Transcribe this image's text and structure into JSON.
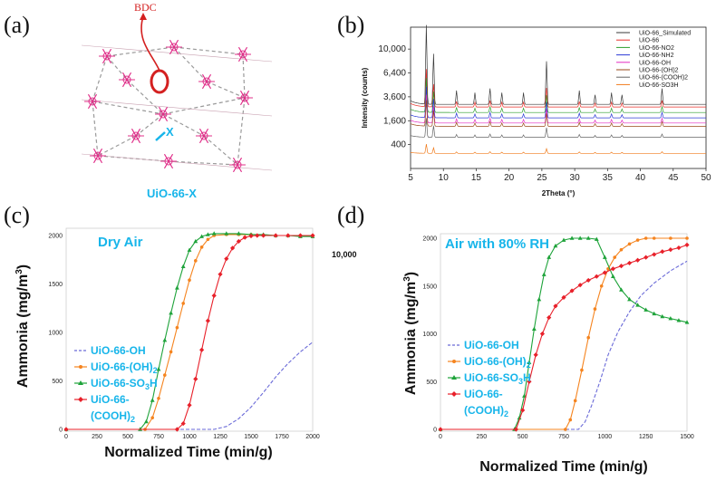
{
  "panels": {
    "a": "(a)",
    "b": "(b)",
    "c": "(c)",
    "d": "(d)"
  },
  "structure": {
    "bdc_label": "BDC",
    "x_label": "X",
    "caption": "UiO-66-X"
  },
  "stray_text": "10,000",
  "chart_data": [
    {
      "id": "b",
      "type": "line",
      "xlabel": "2Theta (°)",
      "ylabel": "Intensity (counts)",
      "xlim": [
        5,
        50
      ],
      "x_ticks": [
        5,
        10,
        15,
        20,
        25,
        30,
        35,
        40,
        45,
        50
      ],
      "y_ticks": [
        400,
        1600,
        3600,
        6400,
        10000
      ],
      "y_scale": "sqrt",
      "ylim": [
        0,
        14000
      ],
      "grid": false,
      "legend_position": "top-right",
      "peaks": [
        7.4,
        8.5,
        12.0,
        14.8,
        17.1,
        18.9,
        22.2,
        25.7,
        30.7,
        33.1,
        35.6,
        37.2,
        43.3
      ],
      "series": [
        {
          "name": "UiO-66_Simulated",
          "color": "#3a3a3a",
          "baseline": 2880,
          "peak_scale": 2.5
        },
        {
          "name": "UiO-66",
          "color": "#e8302a",
          "baseline": 2650,
          "peak_scale": 1.0
        },
        {
          "name": "UiO-66-NO2",
          "color": "#2e9e2e",
          "baseline": 2200,
          "peak_scale": 1.0
        },
        {
          "name": "UiO-66-NH2",
          "color": "#2b39d6",
          "baseline": 1800,
          "peak_scale": 1.0
        },
        {
          "name": "UiO-66-OH",
          "color": "#e22bc2",
          "baseline": 1450,
          "peak_scale": 1.0
        },
        {
          "name": "UiO-66-(OH)2",
          "color": "#9a4a1a",
          "baseline": 1250,
          "peak_scale": 1.0
        },
        {
          "name": "UiO-66-(COOH)2",
          "color": "#666666",
          "baseline": 680,
          "peak_scale": 1.0
        },
        {
          "name": "UiO-66-SO3H",
          "color": "#f07b1c",
          "baseline": 160,
          "peak_scale": 1.0
        }
      ]
    },
    {
      "id": "c",
      "type": "line",
      "title": "Dry Air",
      "xlabel": "Normalized Time (min/g)",
      "ylabel": "Ammonia (mg/m³)",
      "xlim": [
        0,
        2000
      ],
      "ylim": [
        0,
        2000
      ],
      "x_ticks": [
        0,
        250,
        500,
        750,
        1000,
        1250,
        1500,
        1750,
        2000
      ],
      "y_ticks": [
        0,
        500,
        1000,
        1500,
        2000
      ],
      "legend_position": "bottom-left",
      "series": [
        {
          "name": "UiO-66-OH",
          "color": "#6a6ad8",
          "style": "dashed",
          "x": [
            0,
            1200,
            1300,
            1400,
            1500,
            1600,
            1700,
            1800,
            1900,
            2000
          ],
          "y": [
            0,
            0,
            30,
            110,
            230,
            380,
            540,
            680,
            800,
            900
          ]
        },
        {
          "name": "UiO-66-(OH)2",
          "color": "#f5841f",
          "style": "marker",
          "x": [
            0,
            640,
            700,
            750,
            800,
            850,
            900,
            950,
            1000,
            1050,
            1100,
            1150,
            1200,
            1300,
            1400,
            1500,
            1600,
            1700,
            1800,
            1900,
            2000
          ],
          "y": [
            0,
            0,
            120,
            320,
            560,
            800,
            1050,
            1300,
            1540,
            1740,
            1880,
            1960,
            2000,
            2010,
            2010,
            2010,
            2005,
            2000,
            2000,
            2000,
            2000
          ]
        },
        {
          "name": "UiO-66-SO3H",
          "color": "#1ea33a",
          "style": "marker",
          "x": [
            0,
            600,
            650,
            700,
            750,
            800,
            850,
            900,
            950,
            1000,
            1050,
            1100,
            1150,
            1200,
            1300,
            1400,
            1500,
            1600,
            1700,
            1800,
            1900,
            2000
          ],
          "y": [
            0,
            0,
            80,
            300,
            620,
            920,
            1200,
            1460,
            1680,
            1850,
            1940,
            1990,
            2010,
            2020,
            2020,
            2020,
            2010,
            2010,
            2000,
            2000,
            1990,
            1990
          ]
        },
        {
          "name": "UiO-66-(COOH)2",
          "color": "#e8202a",
          "style": "marker",
          "x": [
            0,
            900,
            950,
            1000,
            1050,
            1100,
            1150,
            1200,
            1250,
            1300,
            1350,
            1400,
            1450,
            1500,
            1550,
            1600,
            1700,
            1800,
            1900,
            2000
          ],
          "y": [
            0,
            0,
            60,
            250,
            520,
            820,
            1120,
            1380,
            1600,
            1760,
            1870,
            1940,
            1980,
            1995,
            2000,
            2000,
            2000,
            2000,
            2000,
            2000
          ]
        }
      ]
    },
    {
      "id": "d",
      "type": "line",
      "title": "Air with 80% RH",
      "xlabel": "Normalized Time (min/g)",
      "ylabel": "Ammonia (mg/m³)",
      "xlim": [
        0,
        1500
      ],
      "ylim": [
        0,
        2000
      ],
      "x_ticks": [
        0,
        250,
        500,
        750,
        1000,
        1250,
        1500
      ],
      "y_ticks": [
        0,
        500,
        1000,
        1500,
        2000
      ],
      "legend_position": "bottom-left",
      "series": [
        {
          "name": "UiO-66-OH",
          "color": "#6a6ad8",
          "style": "dashed",
          "x": [
            0,
            840,
            880,
            920,
            970,
            1020,
            1080,
            1150,
            1220,
            1300,
            1400,
            1500
          ],
          "y": [
            0,
            0,
            80,
            250,
            500,
            780,
            1020,
            1230,
            1400,
            1530,
            1660,
            1760
          ]
        },
        {
          "name": "UiO-66-(OH)2",
          "color": "#f5841f",
          "style": "marker",
          "x": [
            0,
            760,
            790,
            820,
            860,
            900,
            940,
            980,
            1020,
            1060,
            1100,
            1150,
            1200,
            1250,
            1300,
            1400,
            1500
          ],
          "y": [
            0,
            0,
            100,
            300,
            620,
            960,
            1260,
            1500,
            1680,
            1800,
            1880,
            1940,
            1980,
            2000,
            2000,
            2000,
            2000
          ]
        },
        {
          "name": "UiO-66-SO3H",
          "color": "#1ea33a",
          "style": "marker",
          "x": [
            0,
            450,
            480,
            510,
            540,
            570,
            600,
            630,
            660,
            700,
            750,
            800,
            850,
            900,
            950,
            1000,
            1050,
            1100,
            1150,
            1200,
            1250,
            1300,
            1350,
            1400,
            1450,
            1500
          ],
          "y": [
            0,
            0,
            120,
            350,
            700,
            1050,
            1360,
            1620,
            1800,
            1920,
            1980,
            2000,
            2000,
            2000,
            1990,
            1800,
            1600,
            1460,
            1360,
            1300,
            1250,
            1210,
            1180,
            1160,
            1140,
            1120
          ]
        },
        {
          "name": "UiO-66-(COOH)2",
          "color": "#e8202a",
          "style": "marker",
          "x": [
            0,
            460,
            500,
            540,
            580,
            620,
            660,
            700,
            750,
            800,
            850,
            900,
            950,
            1000,
            1050,
            1100,
            1150,
            1200,
            1250,
            1300,
            1350,
            1400,
            1450,
            1500
          ],
          "y": [
            0,
            0,
            200,
            500,
            780,
            1000,
            1170,
            1290,
            1380,
            1450,
            1510,
            1560,
            1600,
            1640,
            1680,
            1710,
            1740,
            1770,
            1800,
            1830,
            1860,
            1880,
            1900,
            1930
          ]
        }
      ]
    }
  ],
  "legend_labels_cd": {
    "oh": "UiO-66-OH",
    "oh2_base": "UiO-66-(OH)",
    "oh2_sub": "2",
    "so3h_base": "UiO-66-SO",
    "so3h_sub": "3",
    "so3h_tail": "H",
    "cooh_line1": "UiO-66-",
    "cooh_line2": "(COOH)",
    "cooh_sub": "2"
  },
  "axis_text": {
    "ylabel_base": "Ammonia (mg/m",
    "ylabel_sup": "3",
    "ylabel_tail": ")"
  },
  "colors": {
    "cyan_label": "#17b5ea",
    "mof_pink": "#e0308a",
    "linker_gray": "#9a9a9a",
    "bdc_red": "#d42020"
  }
}
